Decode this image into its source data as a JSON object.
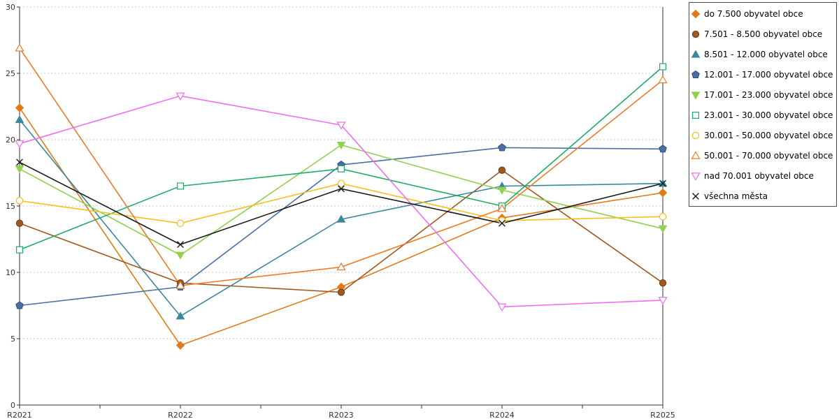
{
  "chart_data": {
    "type": "line",
    "categories": [
      "R2021",
      "R2022",
      "R2023",
      "R2024",
      "R2025"
    ],
    "ylim": [
      0,
      30
    ],
    "yticks": [
      0,
      5,
      10,
      15,
      20,
      25,
      30
    ],
    "grid": true,
    "legend_position": "right",
    "series": [
      {
        "name": "do 7.500 obyvatel obce",
        "color": "#e07b1a",
        "marker": "diamond",
        "values": [
          22.4,
          4.5,
          8.9,
          14.1,
          16.0
        ]
      },
      {
        "name": "7.501 - 8.500 obyvatel obce",
        "color": "#a0581f",
        "marker": "circle-filled",
        "values": [
          13.7,
          9.2,
          8.5,
          17.7,
          9.2
        ]
      },
      {
        "name": "8.501 - 12.000 obyvatel obce",
        "color": "#3b87a0",
        "marker": "triangle-up-filled",
        "values": [
          21.5,
          6.7,
          14.0,
          16.5,
          16.7
        ]
      },
      {
        "name": "12.001 - 17.000 obyvatel obce",
        "color": "#4a6fa5",
        "marker": "pentagon-filled",
        "values": [
          7.5,
          8.9,
          18.1,
          19.4,
          19.3
        ]
      },
      {
        "name": "17.001 - 23.000 obyvatel obce",
        "color": "#92d050",
        "marker": "triangle-down-filled",
        "values": [
          17.8,
          11.3,
          19.6,
          16.2,
          13.3
        ]
      },
      {
        "name": "23.001 - 30.000 obyvatel obce",
        "color": "#1fad63",
        "marker": "square-open",
        "values": [
          11.7,
          16.5,
          17.8,
          15.0,
          25.5
        ]
      },
      {
        "name": "30.001 - 50.000 obyvatel obce",
        "color": "#f5c01e",
        "marker": "circle-open",
        "values": [
          15.4,
          13.7,
          16.7,
          13.9,
          14.2
        ]
      },
      {
        "name": "50.001 - 70.000 obyvatel obce",
        "color": "#f07a2a",
        "marker": "triangle-up-open",
        "values": [
          26.9,
          9.0,
          10.4,
          14.8,
          24.5
        ]
      },
      {
        "name": "nad 70.001 obyvatel obce",
        "color": "#ef6ff0",
        "marker": "triangle-down-open",
        "values": [
          19.7,
          23.3,
          21.1,
          7.4,
          7.9
        ]
      },
      {
        "name": "všechna města",
        "color": "#1a1a1a",
        "marker": "cross",
        "values": [
          18.3,
          12.1,
          16.3,
          13.7,
          16.7
        ]
      }
    ]
  }
}
